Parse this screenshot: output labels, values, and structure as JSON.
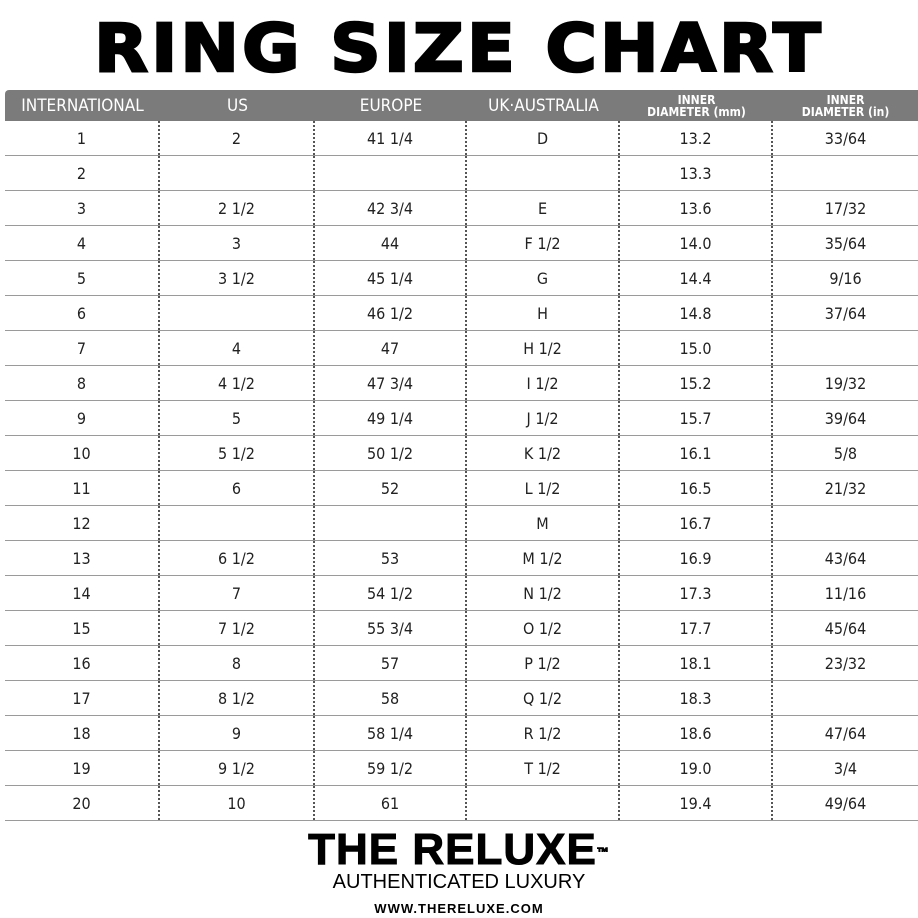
{
  "title": "RING SIZE CHART",
  "table": {
    "headers": [
      "INTERNATIONAL",
      "US",
      "EUROPE",
      "UK·AUSTRALIA",
      "INNER DIAMETER (mm)",
      "INNER DIAMETER (in)"
    ],
    "header_lines": {
      "inner": "INNER",
      "mm": "DIAMETER (mm)",
      "in": "DIAMETER (in)"
    },
    "rows": [
      [
        "1",
        "2",
        "41 1/4",
        "D",
        "13.2",
        "33/64"
      ],
      [
        "2",
        "",
        "",
        "",
        "13.3",
        ""
      ],
      [
        "3",
        "2 1/2",
        "42 3/4",
        "E",
        "13.6",
        "17/32"
      ],
      [
        "4",
        "3",
        "44",
        "F 1/2",
        "14.0",
        "35/64"
      ],
      [
        "5",
        "3 1/2",
        "45 1/4",
        "G",
        "14.4",
        "9/16"
      ],
      [
        "6",
        "",
        "46 1/2",
        "H",
        "14.8",
        "37/64"
      ],
      [
        "7",
        "4",
        "47",
        "H 1/2",
        "15.0",
        ""
      ],
      [
        "8",
        "4 1/2",
        "47 3/4",
        "I 1/2",
        "15.2",
        "19/32"
      ],
      [
        "9",
        "5",
        "49 1/4",
        "J 1/2",
        "15.7",
        "39/64"
      ],
      [
        "10",
        "5 1/2",
        "50 1/2",
        "K 1/2",
        "16.1",
        "5/8"
      ],
      [
        "11",
        "6",
        "52",
        "L 1/2",
        "16.5",
        "21/32"
      ],
      [
        "12",
        "",
        "",
        "M",
        "16.7",
        ""
      ],
      [
        "13",
        "6 1/2",
        "53",
        "M 1/2",
        "16.9",
        "43/64"
      ],
      [
        "14",
        "7",
        "54 1/2",
        "N 1/2",
        "17.3",
        "11/16"
      ],
      [
        "15",
        "7 1/2",
        "55 3/4",
        "O 1/2",
        "17.7",
        "45/64"
      ],
      [
        "16",
        "8",
        "57",
        "P 1/2",
        "18.1",
        "23/32"
      ],
      [
        "17",
        "8 1/2",
        "58",
        "Q 1/2",
        "18.3",
        ""
      ],
      [
        "18",
        "9",
        "58 1/4",
        "R 1/2",
        "18.6",
        "47/64"
      ],
      [
        "19",
        "9 1/2",
        "59 1/2",
        "T 1/2",
        "19.0",
        "3/4"
      ],
      [
        "20",
        "10",
        "61",
        "",
        "19.4",
        "49/64"
      ]
    ]
  },
  "brand": {
    "logo": "THE RELUXE",
    "trademark": "™",
    "tagline": "AUTHENTICATED LUXURY",
    "url": "WWW.THERELUXE.COM"
  },
  "colors": {
    "header_bg": "#7b7b7b",
    "header_text": "#ffffff"
  }
}
